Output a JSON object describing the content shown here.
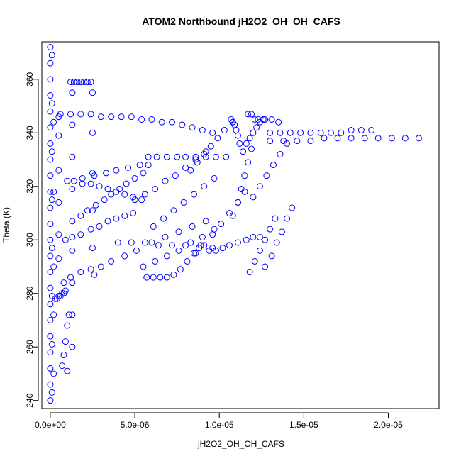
{
  "chart_data": {
    "type": "scatter",
    "title": "ATOM2 Northbound jH2O2_OH_OH_CAFS",
    "xlabel": "jH2O2_OH_OH_CAFS",
    "ylabel": "Theta (K)",
    "xlim": [
      -5e-07,
      2.3e-05
    ],
    "ylim": [
      237,
      374
    ],
    "x_ticks": [
      {
        "value": 0,
        "label": "0.0e+00"
      },
      {
        "value": 5e-06,
        "label": "5.0e-06"
      },
      {
        "value": 1e-05,
        "label": "1.0e-05"
      },
      {
        "value": 1.5e-05,
        "label": "1.5e-05"
      },
      {
        "value": 2e-05,
        "label": "2.0e-05"
      }
    ],
    "y_ticks": [
      {
        "value": 240,
        "label": "240"
      },
      {
        "value": 260,
        "label": "260"
      },
      {
        "value": 280,
        "label": "280"
      },
      {
        "value": 300,
        "label": "300"
      },
      {
        "value": 320,
        "label": "320"
      },
      {
        "value": 340,
        "label": "340"
      },
      {
        "value": 360,
        "label": "360"
      }
    ],
    "grid": false,
    "marker": "open-circle",
    "color": "#0000ff",
    "series": [
      {
        "values": [
          [
            0,
            240
          ],
          [
            0,
            246
          ],
          [
            0,
            252
          ],
          [
            0,
            258
          ],
          [
            0,
            264
          ],
          [
            0,
            270
          ],
          [
            0,
            276
          ],
          [
            0,
            282
          ],
          [
            0,
            288
          ],
          [
            0,
            294
          ],
          [
            0,
            300
          ],
          [
            0,
            306
          ],
          [
            0,
            312
          ],
          [
            0,
            318
          ],
          [
            0,
            324
          ],
          [
            0,
            330
          ],
          [
            0,
            336
          ],
          [
            0,
            342
          ],
          [
            0,
            348
          ],
          [
            0,
            354
          ],
          [
            0,
            360
          ],
          [
            0,
            366
          ],
          [
            0,
            372
          ],
          [
            1e-07,
            243
          ],
          [
            1e-07,
            261
          ],
          [
            1e-07,
            279
          ],
          [
            1e-07,
            297
          ],
          [
            1e-07,
            315
          ],
          [
            1e-07,
            333
          ],
          [
            1e-07,
            351
          ],
          [
            1e-07,
            369
          ],
          [
            2e-07,
            250
          ],
          [
            2e-07,
            272
          ],
          [
            2e-07,
            290
          ],
          [
            2e-07,
            318
          ],
          [
            2e-07,
            344
          ],
          [
            3e-07,
            278
          ],
          [
            4e-07,
            278
          ],
          [
            5e-07,
            279
          ],
          [
            6e-07,
            279
          ],
          [
            7e-07,
            280
          ],
          [
            8e-07,
            280
          ],
          [
            9e-07,
            281
          ],
          [
            5e-07,
            293
          ],
          [
            5e-07,
            302
          ],
          [
            5e-07,
            314
          ],
          [
            5e-07,
            326
          ],
          [
            5e-07,
            339
          ],
          [
            5e-07,
            346
          ],
          [
            6e-07,
            347
          ],
          [
            1.2e-06,
            347
          ],
          [
            1.8e-06,
            347
          ],
          [
            2.4e-06,
            347
          ],
          [
            3e-06,
            346
          ],
          [
            3.6e-06,
            346
          ],
          [
            4.2e-06,
            346
          ],
          [
            4.8e-06,
            346
          ],
          [
            5.4e-06,
            345
          ],
          [
            6e-06,
            345
          ],
          [
            6.6e-06,
            344
          ],
          [
            7.2e-06,
            344
          ],
          [
            7.8e-06,
            343
          ],
          [
            8.4e-06,
            342
          ],
          [
            9e-06,
            341
          ],
          [
            9.6e-06,
            340
          ],
          [
            1.2e-06,
            359
          ],
          [
            1.4e-06,
            359
          ],
          [
            1.6e-06,
            359
          ],
          [
            1.8e-06,
            359
          ],
          [
            2e-06,
            359
          ],
          [
            2.2e-06,
            359
          ],
          [
            2.4e-06,
            359
          ],
          [
            1.3e-06,
            355
          ],
          [
            1.3e-06,
            343
          ],
          [
            1.3e-06,
            331
          ],
          [
            1.3e-06,
            319
          ],
          [
            1.3e-06,
            307
          ],
          [
            1.3e-06,
            296
          ],
          [
            1.3e-06,
            284
          ],
          [
            1.3e-06,
            272
          ],
          [
            1.3e-06,
            260
          ],
          [
            2.5e-06,
            355
          ],
          [
            2.5e-06,
            340
          ],
          [
            2.5e-06,
            325
          ],
          [
            2.5e-06,
            311
          ],
          [
            2.5e-06,
            297
          ],
          [
            2.6e-06,
            287
          ],
          [
            1e-06,
            251
          ],
          [
            7e-07,
            253
          ],
          [
            8e-07,
            257
          ],
          [
            9e-07,
            262
          ],
          [
            1e-06,
            268
          ],
          [
            1.1e-06,
            272
          ],
          [
            8e-07,
            284
          ],
          [
            1.2e-06,
            286
          ],
          [
            1.8e-06,
            288
          ],
          [
            2.4e-06,
            289
          ],
          [
            3e-06,
            290
          ],
          [
            3.6e-06,
            292
          ],
          [
            4.4e-06,
            294
          ],
          [
            5.1e-06,
            296
          ],
          [
            6e-06,
            299
          ],
          [
            6.8e-06,
            301
          ],
          [
            7.6e-06,
            303
          ],
          [
            8.4e-06,
            305
          ],
          [
            9.2e-06,
            307
          ],
          [
            1e-06,
            322
          ],
          [
            1.4e-06,
            322
          ],
          [
            1.9e-06,
            321
          ],
          [
            2.4e-06,
            321
          ],
          [
            2.9e-06,
            320
          ],
          [
            3.4e-06,
            319
          ],
          [
            3.9e-06,
            318
          ],
          [
            4.4e-06,
            317
          ],
          [
            4.9e-06,
            316
          ],
          [
            5.4e-06,
            315
          ],
          [
            1.9e-06,
            323
          ],
          [
            2.6e-06,
            324
          ],
          [
            3.3e-06,
            325
          ],
          [
            3.9e-06,
            326
          ],
          [
            4.6e-06,
            327
          ],
          [
            5.3e-06,
            328
          ],
          [
            5.8e-06,
            328
          ],
          [
            9e-07,
            300
          ],
          [
            1.3e-06,
            301
          ],
          [
            1.8e-06,
            302
          ],
          [
            2.4e-06,
            304
          ],
          [
            2.9e-06,
            305
          ],
          [
            3.4e-06,
            307
          ],
          [
            3.9e-06,
            308
          ],
          [
            4.4e-06,
            309
          ],
          [
            4.9e-06,
            310
          ],
          [
            1.8e-06,
            309
          ],
          [
            2.2e-06,
            311
          ],
          [
            2.7e-06,
            313
          ],
          [
            3.2e-06,
            315
          ],
          [
            3.6e-06,
            317
          ],
          [
            4.1e-06,
            319
          ],
          [
            4.5e-06,
            321
          ],
          [
            5e-06,
            323
          ],
          [
            5.5e-06,
            325
          ],
          [
            4e-06,
            299
          ],
          [
            4.8e-06,
            299
          ],
          [
            5.6e-06,
            299
          ],
          [
            6.4e-06,
            298
          ],
          [
            7.2e-06,
            298
          ],
          [
            8e-06,
            298
          ],
          [
            8.8e-06,
            297
          ],
          [
            9.6e-06,
            297
          ],
          [
            5.7e-06,
            286
          ],
          [
            6.1e-06,
            286
          ],
          [
            6.5e-06,
            286
          ],
          [
            6.9e-06,
            286
          ],
          [
            7.3e-06,
            287
          ],
          [
            7.7e-06,
            289
          ],
          [
            8.1e-06,
            292
          ],
          [
            8.5e-06,
            295
          ],
          [
            8.9e-06,
            298
          ],
          [
            5.5e-06,
            290
          ],
          [
            6.2e-06,
            292
          ],
          [
            6.9e-06,
            294
          ],
          [
            7.6e-06,
            296
          ],
          [
            8.3e-06,
            299
          ],
          [
            9e-06,
            301
          ],
          [
            9.7e-06,
            304
          ],
          [
            6.1e-06,
            305
          ],
          [
            6.7e-06,
            308
          ],
          [
            7.3e-06,
            311
          ],
          [
            7.9e-06,
            314
          ],
          [
            8.5e-06,
            317
          ],
          [
            9.1e-06,
            320
          ],
          [
            9.7e-06,
            323
          ],
          [
            5.8e-06,
            331
          ],
          [
            6.3e-06,
            331
          ],
          [
            6.9e-06,
            331
          ],
          [
            7.5e-06,
            331
          ],
          [
            8e-06,
            331
          ],
          [
            8.6e-06,
            331
          ],
          [
            9.2e-06,
            331
          ],
          [
            9.8e-06,
            331
          ],
          [
            1.04e-05,
            331
          ],
          [
            5e-06,
            315
          ],
          [
            5.6e-06,
            317
          ],
          [
            6.2e-06,
            319
          ],
          [
            6.8e-06,
            322
          ],
          [
            7.4e-06,
            324
          ],
          [
            8e-06,
            327
          ],
          [
            8.6e-06,
            330
          ],
          [
            9.2e-06,
            333
          ],
          [
            8.3e-06,
            326
          ],
          [
            8.7e-06,
            329
          ],
          [
            9.1e-06,
            332
          ],
          [
            9.5e-06,
            335
          ],
          [
            9.9e-06,
            338
          ],
          [
            1.03e-05,
            341
          ],
          [
            1.08e-05,
            344
          ],
          [
            8.6e-06,
            295
          ],
          [
            9.1e-06,
            298
          ],
          [
            9.6e-06,
            302
          ],
          [
            1.01e-05,
            306
          ],
          [
            1.06e-05,
            310
          ],
          [
            1.11e-05,
            314
          ],
          [
            1.15e-05,
            318
          ],
          [
            9.4e-06,
            296
          ],
          [
            9.8e-06,
            296
          ],
          [
            1.02e-05,
            297
          ],
          [
            1.06e-05,
            298
          ],
          [
            1.11e-05,
            299
          ],
          [
            1.16e-05,
            300
          ],
          [
            1.2e-05,
            301
          ],
          [
            1.24e-05,
            301
          ],
          [
            1.08e-05,
            309
          ],
          [
            1.11e-05,
            314
          ],
          [
            1.13e-05,
            319
          ],
          [
            1.15e-05,
            324
          ],
          [
            1.17e-05,
            329
          ],
          [
            1.19e-05,
            334
          ],
          [
            1.18e-05,
            288
          ],
          [
            1.21e-05,
            292
          ],
          [
            1.24e-05,
            296
          ],
          [
            1.27e-05,
            300
          ],
          [
            1.3e-05,
            304
          ],
          [
            1.33e-05,
            308
          ],
          [
            1.07e-05,
            345
          ],
          [
            1.08e-05,
            344
          ],
          [
            1.09e-05,
            343
          ],
          [
            1.1e-05,
            341
          ],
          [
            1.11e-05,
            339
          ],
          [
            1.12e-05,
            336
          ],
          [
            1.14e-05,
            333
          ],
          [
            1.16e-05,
            336
          ],
          [
            1.18e-05,
            338
          ],
          [
            1.2e-05,
            340
          ],
          [
            1.22e-05,
            342
          ],
          [
            1.24e-05,
            344
          ],
          [
            1.26e-05,
            345
          ],
          [
            1.17e-05,
            347
          ],
          [
            1.19e-05,
            347
          ],
          [
            1.21e-05,
            345
          ],
          [
            1.23e-05,
            345
          ],
          [
            1.27e-05,
            345
          ],
          [
            1.31e-05,
            345
          ],
          [
            1.35e-05,
            344
          ],
          [
            1.3e-05,
            340
          ],
          [
            1.36e-05,
            340
          ],
          [
            1.42e-05,
            340
          ],
          [
            1.48e-05,
            340
          ],
          [
            1.54e-05,
            340
          ],
          [
            1.6e-05,
            340
          ],
          [
            1.66e-05,
            340
          ],
          [
            1.72e-05,
            340
          ],
          [
            1.78e-05,
            341
          ],
          [
            1.84e-05,
            341
          ],
          [
            1.9e-05,
            341
          ],
          [
            1.3e-05,
            337
          ],
          [
            1.38e-05,
            337
          ],
          [
            1.46e-05,
            337
          ],
          [
            1.54e-05,
            337
          ],
          [
            1.62e-05,
            338
          ],
          [
            1.7e-05,
            338
          ],
          [
            1.78e-05,
            338
          ],
          [
            1.86e-05,
            338
          ],
          [
            1.94e-05,
            338
          ],
          [
            2.02e-05,
            338
          ],
          [
            2.1e-05,
            338
          ],
          [
            2.18e-05,
            338
          ],
          [
            1.2e-05,
            316
          ],
          [
            1.24e-05,
            320
          ],
          [
            1.28e-05,
            324
          ],
          [
            1.32e-05,
            328
          ],
          [
            1.36e-05,
            332
          ],
          [
            1.4e-05,
            336
          ],
          [
            1.27e-05,
            290
          ],
          [
            1.31e-05,
            294
          ],
          [
            1.34e-05,
            299
          ],
          [
            1.37e-05,
            303
          ],
          [
            1.4e-05,
            308
          ],
          [
            1.43e-05,
            312
          ]
        ]
      }
    ]
  }
}
